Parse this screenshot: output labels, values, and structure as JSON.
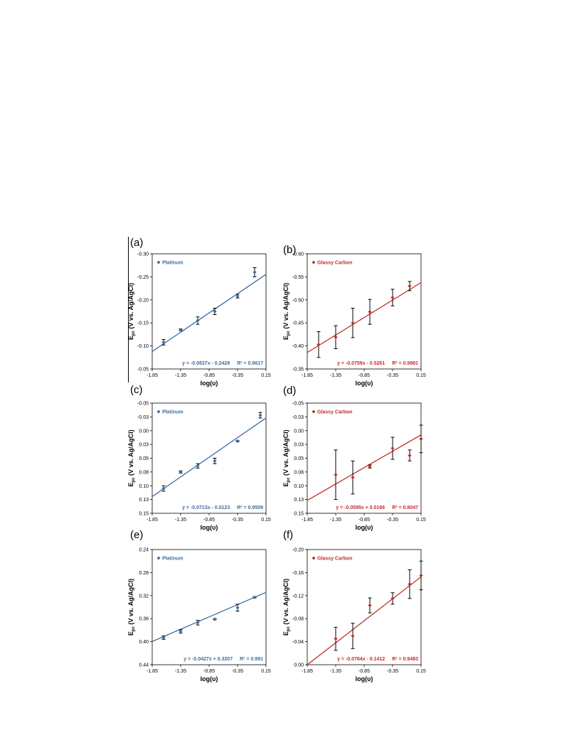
{
  "panels": [
    {
      "label": "(a)",
      "chart_data": {
        "type": "scatter",
        "xlabel": "log(υ)",
        "ylabel": "Epc (V vs. Ag/AgCl)",
        "ylabel_main": "E",
        "ylabel_sub": "pc",
        "ylabel_rest": " (V vs. Ag/AgCl)",
        "xlim": [
          -1.85,
          0.15
        ],
        "ylim": [
          -0.05,
          -0.3
        ],
        "xticks": [
          "-1.85",
          "-1.35",
          "-0.85",
          "-0.35",
          "0.15"
        ],
        "yticks": [
          "-0.30",
          "-0.25",
          "-0.20",
          "-0.15",
          "-0.10",
          "-0.05"
        ],
        "series": [
          {
            "name": "Platinum",
            "x": [
              -1.65,
              -1.35,
              -1.05,
              -0.75,
              -0.35,
              -0.05
            ],
            "y": [
              -0.108,
              -0.135,
              -0.155,
              -0.175,
              -0.208,
              -0.26
            ],
            "err": [
              0.006,
              0.002,
              0.008,
              0.007,
              0.004,
              0.01
            ]
          }
        ],
        "fit": {
          "slope": -0.0837,
          "intercept": -0.2428
        },
        "equation": "y = -0.0837x - 0.2428",
        "r2": "R² = 0.9617",
        "color": "#3f6e9e"
      }
    },
    {
      "label": "(b)",
      "chart_data": {
        "type": "scatter",
        "xlabel": "log(υ)",
        "ylabel": "Epc (V vs. Ag/AgCl)",
        "ylabel_main": "E",
        "ylabel_sub": "pc",
        "ylabel_rest": " (V vs. Ag/AgCl)",
        "xlim": [
          -1.85,
          0.15
        ],
        "ylim": [
          -0.35,
          -0.6
        ],
        "xticks": [
          "-1.85",
          "-1.35",
          "-0.85",
          "-0.35",
          "0.15"
        ],
        "yticks": [
          "-0.60",
          "-0.55",
          "-0.50",
          "-0.45",
          "-0.40",
          "-0.35"
        ],
        "series": [
          {
            "name": "Glassy Carbon",
            "x": [
              -1.65,
              -1.35,
              -1.05,
              -0.75,
              -0.35,
              -0.05
            ],
            "y": [
              -0.403,
              -0.419,
              -0.45,
              -0.474,
              -0.505,
              -0.53
            ],
            "err": [
              0.028,
              0.025,
              0.032,
              0.027,
              0.018,
              0.01
            ]
          }
        ],
        "fit": {
          "slope": -0.0759,
          "intercept": -0.5261
        },
        "equation": "y = -0.0759x - 0.5261",
        "r2": "R² = 0.9881",
        "color": "#c0302a"
      }
    },
    {
      "label": "(c)",
      "chart_data": {
        "type": "scatter",
        "xlabel": "log(υ)",
        "ylabel": "Epc (V vs. Ag/AgCl)",
        "ylabel_main": "E",
        "ylabel_sub": "pc",
        "ylabel_rest": " (V vs. Ag/AgCl)",
        "xlim": [
          -1.85,
          0.15
        ],
        "ylim": [
          0.15,
          -0.05
        ],
        "xticks": [
          "-1.85",
          "-1.35",
          "-0.85",
          "-0.35",
          "0.15"
        ],
        "yticks": [
          "-0.05",
          "-0.03",
          "0.00",
          "0.03",
          "0.05",
          "0.08",
          "0.10",
          "0.13",
          "0.15"
        ],
        "series": [
          {
            "name": "Platinum",
            "x": [
              -1.65,
              -1.35,
              -1.05,
              -0.75,
              -0.35,
              0.05
            ],
            "y": [
              0.105,
              0.075,
              0.064,
              0.055,
              0.019,
              -0.028
            ],
            "err": [
              0.005,
              0.002,
              0.004,
              0.005,
              0.001,
              0.005
            ]
          }
        ],
        "fit": {
          "slope": -0.0713,
          "intercept": -0.0123
        },
        "equation": "y = -0.0713x - 0.0123",
        "r2": "R² = 0.9509",
        "color": "#3f6e9e"
      }
    },
    {
      "label": "(d)",
      "chart_data": {
        "type": "scatter",
        "xlabel": "log(υ)",
        "ylabel": "Epc (V vs. Ag/AgCl)",
        "ylabel_main": "E",
        "ylabel_sub": "pc",
        "ylabel_rest": " (V vs. Ag/AgCl)",
        "xlim": [
          -1.85,
          0.15
        ],
        "ylim": [
          0.15,
          -0.05
        ],
        "xticks": [
          "-1.85",
          "-1.35",
          "-0.85",
          "-0.35",
          "0.15"
        ],
        "yticks": [
          "-0.05",
          "-0.03",
          "0.00",
          "0.03",
          "0.05",
          "0.08",
          "0.10",
          "0.13",
          "0.15"
        ],
        "series": [
          {
            "name": "Glassy Carbon",
            "x": [
              -1.35,
              -1.05,
              -0.75,
              -0.35,
              -0.05,
              0.15
            ],
            "y": [
              0.08,
              0.085,
              0.065,
              0.032,
              0.045,
              0.015
            ],
            "err": [
              0.045,
              0.03,
              0.003,
              0.02,
              0.01,
              0.025
            ]
          }
        ],
        "fit": {
          "slope": -0.0595,
          "intercept": 0.0166
        },
        "equation": "y = -0.0595x + 0.0166",
        "r2": "R² = 0.8047",
        "color": "#c0302a"
      }
    },
    {
      "label": "(e)",
      "chart_data": {
        "type": "scatter",
        "xlabel": "log(υ)",
        "ylabel": "Epc (V vs. Ag/AgCl)",
        "ylabel_main": "E",
        "ylabel_sub": "pc",
        "ylabel_rest": " (V vs. Ag/AgCl)",
        "xlim": [
          -1.85,
          0.15
        ],
        "ylim": [
          0.44,
          0.24
        ],
        "xticks": [
          "-1.85",
          "-1.35",
          "-0.85",
          "-0.35",
          "0.15"
        ],
        "yticks": [
          "0.24",
          "0.28",
          "0.32",
          "0.36",
          "0.40",
          "0.44"
        ],
        "series": [
          {
            "name": "Platinum",
            "x": [
              -1.65,
              -1.35,
              -1.05,
              -0.75,
              -0.35,
              -0.05
            ],
            "y": [
              0.393,
              0.382,
              0.367,
              0.361,
              0.341,
              0.323
            ],
            "err": [
              0.003,
              0.003,
              0.004,
              0.001,
              0.006,
              0.001
            ]
          }
        ],
        "fit": {
          "slope": -0.0427,
          "intercept": 0.3207
        },
        "equation": "y = -0.0427x + 0.3207",
        "r2": "R² = 0.981",
        "color": "#3f6e9e"
      }
    },
    {
      "label": "(f)",
      "chart_data": {
        "type": "scatter",
        "xlabel": "log(υ)",
        "ylabel": "Epc (V vs. Ag/AgCl)",
        "ylabel_main": "E",
        "ylabel_sub": "pc",
        "ylabel_rest": " (V vs. Ag/AgCl)",
        "xlim": [
          -1.85,
          0.15
        ],
        "ylim": [
          0.0,
          -0.2
        ],
        "xticks": [
          "-1.85",
          "-1.35",
          "-0.85",
          "-0.35",
          "0.15"
        ],
        "yticks": [
          "-0.20",
          "-0.16",
          "-0.12",
          "-0.08",
          "-0.04",
          "0.00"
        ],
        "series": [
          {
            "name": "Glassy Carbon",
            "x": [
              -1.35,
              -1.05,
              -0.75,
              -0.35,
              -0.05,
              0.15
            ],
            "y": [
              -0.045,
              -0.05,
              -0.103,
              -0.115,
              -0.14,
              -0.155
            ],
            "err": [
              0.02,
              0.022,
              0.013,
              0.01,
              0.025,
              0.025
            ]
          }
        ],
        "fit": {
          "slope": -0.0764,
          "intercept": -0.1412
        },
        "equation": "y = -0.0764x - 0.1412",
        "r2": "R² = 0.9483",
        "color": "#c0302a"
      }
    }
  ]
}
